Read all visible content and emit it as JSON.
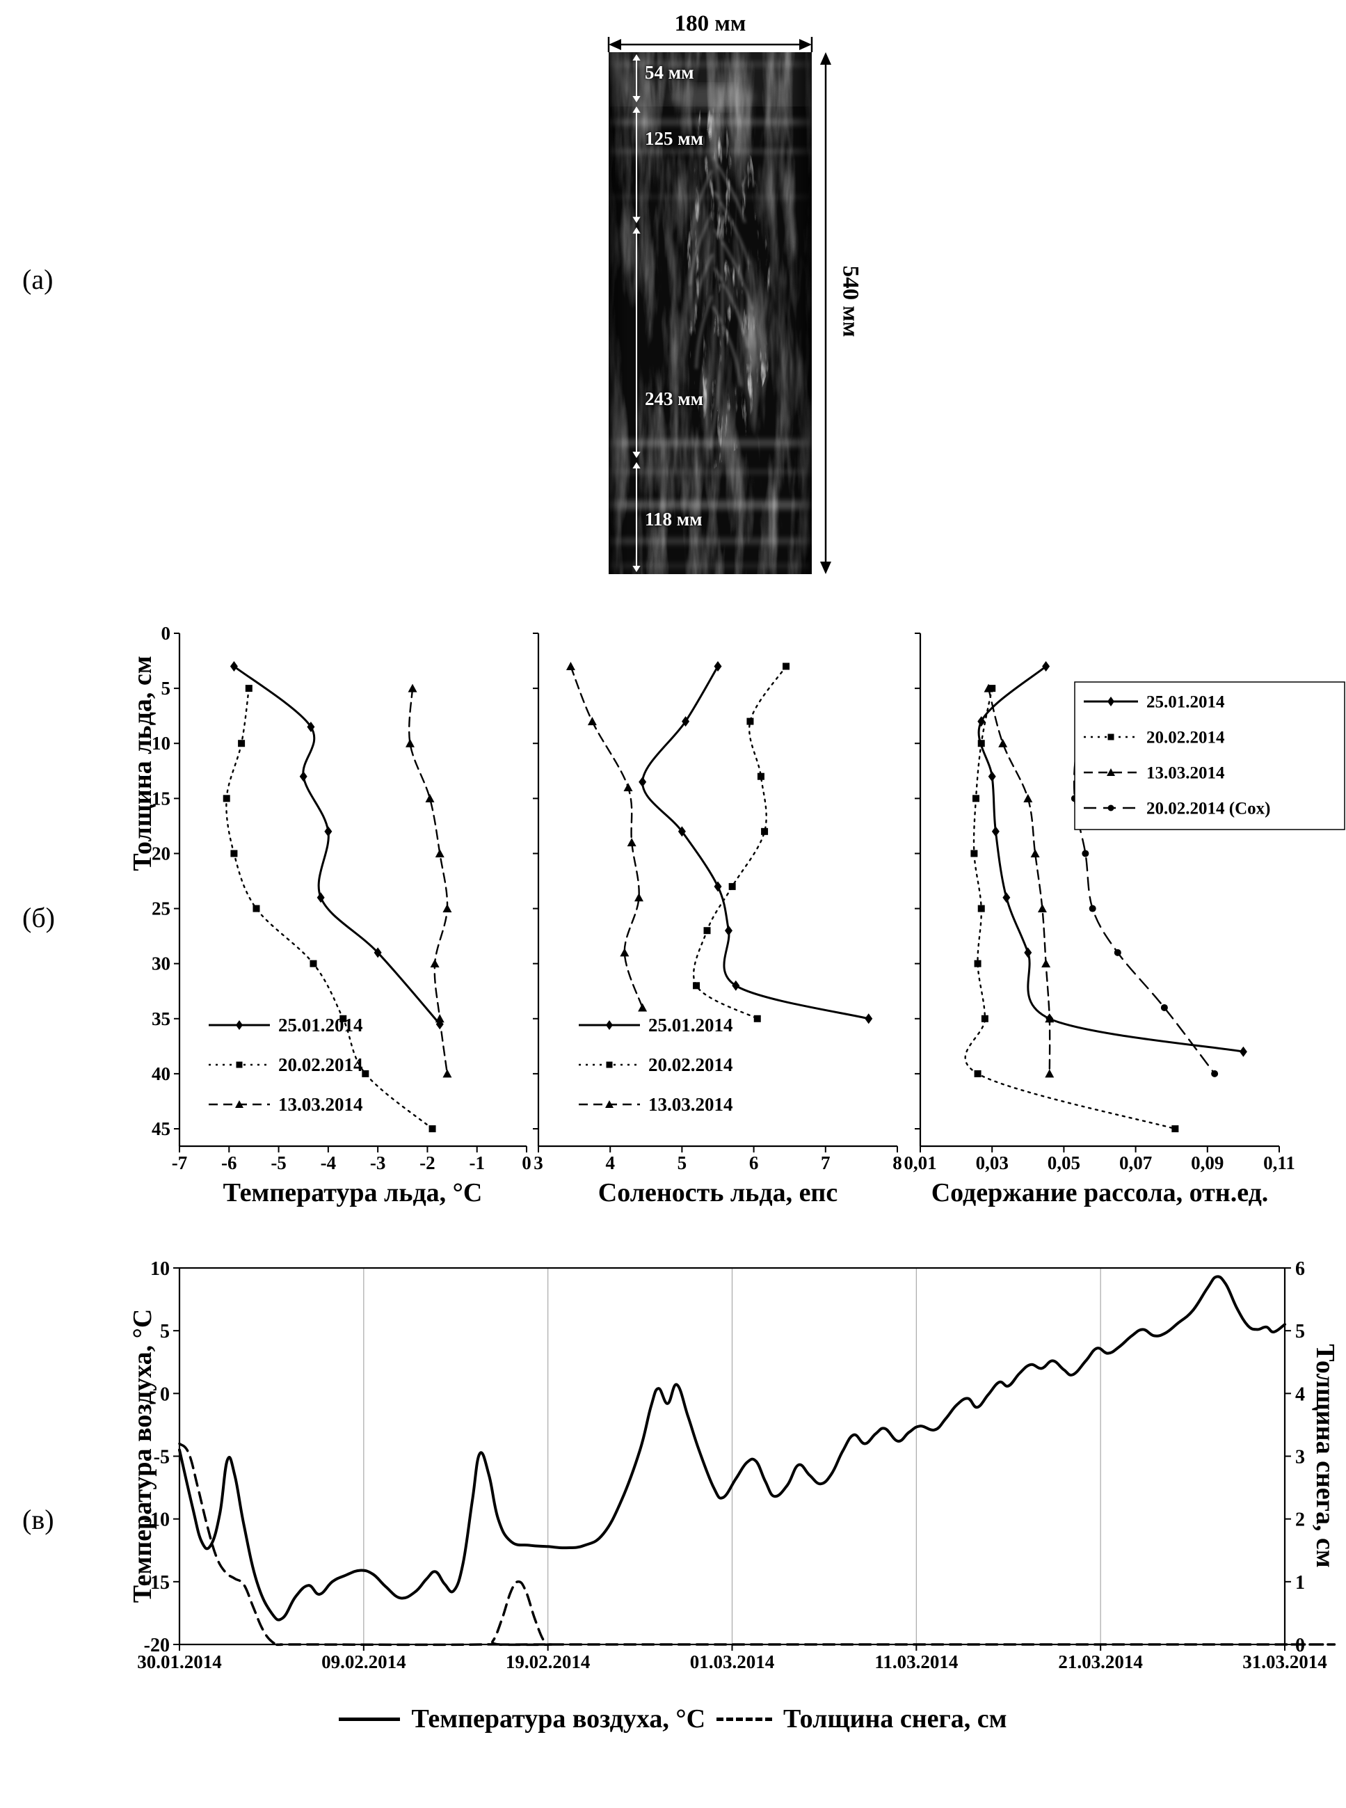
{
  "panels": {
    "a": "(а)",
    "b": "(б)",
    "v": "(в)"
  },
  "core_image": {
    "width_label": "180 мм",
    "height_label": "540 мм",
    "total_mm": 540,
    "segments": [
      {
        "label": "54 мм",
        "mm": 54
      },
      {
        "label": "125 мм",
        "mm": 125
      },
      {
        "label": "243 мм",
        "mm": 243
      },
      {
        "label": "118 мм",
        "mm": 118
      }
    ]
  },
  "profiles_ylabel": "Толщина льда, см",
  "chart_data": [
    {
      "id": "ice-temperature-profile",
      "type": "line",
      "title": "Температура льда, °C",
      "ylabel": "Толщина льда, см",
      "xlim": [
        -7,
        0
      ],
      "xticks": [
        -7,
        -6,
        -5,
        -4,
        -3,
        -2,
        -1,
        0
      ],
      "xtick_labels": [
        "-7",
        "-6",
        "-5",
        "-4",
        "-3",
        "-2",
        "-1",
        "0"
      ],
      "ylim": [
        0,
        47
      ],
      "yticks": [
        0,
        5,
        10,
        15,
        20,
        25,
        30,
        35,
        40,
        45
      ],
      "ytick_labels": [
        "0",
        "5",
        "10",
        "15",
        "20",
        "25",
        "30",
        "35",
        "40",
        "45"
      ],
      "y_axis": "depth_cm_downward",
      "grid": "off",
      "legend_position": "bottom-left",
      "series": [
        {
          "name": "25.01.2014",
          "line": "solid",
          "marker": "diamond",
          "points": [
            [
              -5.9,
              3
            ],
            [
              -4.35,
              8.5
            ],
            [
              -4.5,
              13
            ],
            [
              -4.0,
              18
            ],
            [
              -4.15,
              24
            ],
            [
              -3.0,
              29
            ],
            [
              -1.75,
              35.5
            ]
          ]
        },
        {
          "name": "20.02.2014",
          "line": "dotted",
          "marker": "square",
          "points": [
            [
              -5.6,
              5
            ],
            [
              -5.75,
              10
            ],
            [
              -6.05,
              15
            ],
            [
              -5.9,
              20
            ],
            [
              -5.45,
              25
            ],
            [
              -4.3,
              30
            ],
            [
              -3.7,
              35
            ],
            [
              -3.25,
              40
            ],
            [
              -1.9,
              45
            ]
          ]
        },
        {
          "name": "13.03.2014",
          "line": "dashed",
          "marker": "triangle",
          "points": [
            [
              -2.3,
              5
            ],
            [
              -2.35,
              10
            ],
            [
              -1.95,
              15
            ],
            [
              -1.75,
              20
            ],
            [
              -1.6,
              25
            ],
            [
              -1.85,
              30
            ],
            [
              -1.75,
              35
            ],
            [
              -1.6,
              40
            ]
          ]
        }
      ]
    },
    {
      "id": "ice-salinity-profile",
      "type": "line",
      "title": "Соленость льда, епс",
      "xlim": [
        3,
        8
      ],
      "xticks": [
        3,
        4,
        5,
        6,
        7,
        8
      ],
      "xtick_labels": [
        "3",
        "4",
        "5",
        "6",
        "7",
        "8"
      ],
      "ylim": [
        0,
        47
      ],
      "yticks": [
        0,
        5,
        10,
        15,
        20,
        25,
        30,
        35,
        40,
        45
      ],
      "y_axis": "depth_cm_downward",
      "grid": "off",
      "legend_position": "bottom-left",
      "series": [
        {
          "name": "25.01.2014",
          "line": "solid",
          "marker": "diamond",
          "points": [
            [
              5.5,
              3
            ],
            [
              5.05,
              8
            ],
            [
              4.45,
              13.5
            ],
            [
              5.0,
              18
            ],
            [
              5.5,
              23
            ],
            [
              5.65,
              27
            ],
            [
              5.75,
              32
            ],
            [
              7.6,
              35
            ]
          ]
        },
        {
          "name": "20.02.2014",
          "line": "dotted",
          "marker": "square",
          "points": [
            [
              6.45,
              3
            ],
            [
              5.95,
              8
            ],
            [
              6.1,
              13
            ],
            [
              6.15,
              18
            ],
            [
              5.7,
              23
            ],
            [
              5.35,
              27
            ],
            [
              5.2,
              32
            ],
            [
              6.05,
              35
            ]
          ]
        },
        {
          "name": "13.03.2014",
          "line": "dashed",
          "marker": "triangle",
          "points": [
            [
              3.45,
              3
            ],
            [
              3.75,
              8
            ],
            [
              4.25,
              14
            ],
            [
              4.3,
              19
            ],
            [
              4.4,
              24
            ],
            [
              4.2,
              29
            ],
            [
              4.45,
              34
            ]
          ]
        }
      ]
    },
    {
      "id": "brine-content-profile",
      "type": "line",
      "title": "Содержание рассола, отн.ед.",
      "xlim": [
        0.01,
        0.11
      ],
      "xticks": [
        0.01,
        0.03,
        0.05,
        0.07,
        0.09,
        0.11
      ],
      "xtick_labels": [
        "0,01",
        "0,03",
        "0,05",
        "0,07",
        "0,09",
        "0,11"
      ],
      "ylim": [
        0,
        47
      ],
      "yticks": [
        0,
        5,
        10,
        15,
        20,
        25,
        30,
        35,
        40,
        45
      ],
      "y_axis": "depth_cm_downward",
      "grid": "off",
      "legend_position": "top-right",
      "series": [
        {
          "name": "25.01.2014",
          "line": "solid",
          "marker": "diamond",
          "points": [
            [
              0.045,
              3
            ],
            [
              0.027,
              8
            ],
            [
              0.03,
              13
            ],
            [
              0.031,
              18
            ],
            [
              0.034,
              24
            ],
            [
              0.04,
              29
            ],
            [
              0.046,
              35
            ],
            [
              0.1,
              38
            ]
          ]
        },
        {
          "name": "20.02.2014",
          "line": "dotted",
          "marker": "square",
          "points": [
            [
              0.03,
              5
            ],
            [
              0.027,
              10
            ],
            [
              0.0255,
              15
            ],
            [
              0.025,
              20
            ],
            [
              0.027,
              25
            ],
            [
              0.026,
              30
            ],
            [
              0.028,
              35
            ],
            [
              0.026,
              40
            ],
            [
              0.081,
              45
            ]
          ]
        },
        {
          "name": "13.03.2014",
          "line": "dashed",
          "marker": "triangle",
          "points": [
            [
              0.029,
              5
            ],
            [
              0.033,
              10
            ],
            [
              0.04,
              15
            ],
            [
              0.042,
              20
            ],
            [
              0.044,
              25
            ],
            [
              0.045,
              30
            ],
            [
              0.046,
              35
            ],
            [
              0.046,
              40
            ]
          ]
        },
        {
          "name": "20.02.2014 (Cox)",
          "line": "longdash",
          "marker": "circle",
          "points": [
            [
              0.06,
              5
            ],
            [
              0.054,
              10
            ],
            [
              0.053,
              15
            ],
            [
              0.056,
              20
            ],
            [
              0.058,
              25
            ],
            [
              0.065,
              29
            ],
            [
              0.078,
              34
            ],
            [
              0.092,
              40
            ]
          ]
        }
      ]
    },
    {
      "id": "air-temp-snow-timeseries",
      "type": "line",
      "xlim": [
        0,
        60
      ],
      "xticks": [
        0,
        10,
        20,
        30,
        40,
        50,
        60
      ],
      "xtick_labels": [
        "30.01.2014",
        "09.02.2014",
        "19.02.2014",
        "01.03.2014",
        "11.03.2014",
        "21.03.2014",
        "31.03.2014"
      ],
      "ylabel_left": "Температура воздуха, °C",
      "ylabel_right": "Толщина снега, см",
      "ylim_left": [
        -20,
        10
      ],
      "yticks_left": [
        -20,
        -15,
        -10,
        -5,
        0,
        5,
        10
      ],
      "ytick_labels_left": [
        "-20",
        "-15",
        "-10",
        "-5",
        "0",
        "5",
        "10"
      ],
      "ylim_right": [
        0,
        6
      ],
      "yticks_right": [
        0,
        1,
        2,
        3,
        4,
        5,
        6
      ],
      "ytick_labels_right": [
        "0",
        "1",
        "2",
        "3",
        "4",
        "5",
        "6"
      ],
      "grid": "vertical",
      "legend_position": "bottom",
      "series": [
        {
          "name": "Температура воздуха, °C",
          "axis": "left",
          "line": "solid",
          "points": [
            [
              0,
              -4.5
            ],
            [
              0.7,
              -9
            ],
            [
              1.2,
              -11.8
            ],
            [
              1.7,
              -12.1
            ],
            [
              2.2,
              -9.5
            ],
            [
              2.6,
              -5.3
            ],
            [
              3,
              -6.5
            ],
            [
              3.5,
              -10.5
            ],
            [
              4.2,
              -15
            ],
            [
              5,
              -17.5
            ],
            [
              5.6,
              -17.9
            ],
            [
              6.3,
              -16.2
            ],
            [
              7,
              -15.3
            ],
            [
              7.6,
              -16
            ],
            [
              8.3,
              -15
            ],
            [
              9,
              -14.5
            ],
            [
              9.8,
              -14.1
            ],
            [
              10.5,
              -14.4
            ],
            [
              11.2,
              -15.4
            ],
            [
              12,
              -16.3
            ],
            [
              12.8,
              -15.8
            ],
            [
              13.4,
              -14.8
            ],
            [
              13.9,
              -14.2
            ],
            [
              14.4,
              -15.2
            ],
            [
              14.9,
              -15.7
            ],
            [
              15.4,
              -13.5
            ],
            [
              15.9,
              -8.5
            ],
            [
              16.3,
              -4.8
            ],
            [
              16.8,
              -6.5
            ],
            [
              17.3,
              -10
            ],
            [
              18,
              -11.8
            ],
            [
              19,
              -12.1
            ],
            [
              20,
              -12.2
            ],
            [
              21,
              -12.3
            ],
            [
              22,
              -12.1
            ],
            [
              23,
              -11.2
            ],
            [
              24,
              -8.5
            ],
            [
              25,
              -4.5
            ],
            [
              25.6,
              -1
            ],
            [
              26,
              0.4
            ],
            [
              26.5,
              -0.8
            ],
            [
              27,
              0.7
            ],
            [
              27.6,
              -1.8
            ],
            [
              28.2,
              -4.5
            ],
            [
              29,
              -7.5
            ],
            [
              29.5,
              -8.3
            ],
            [
              30.2,
              -6.8
            ],
            [
              30.8,
              -5.5
            ],
            [
              31.3,
              -5.4
            ],
            [
              31.8,
              -7
            ],
            [
              32.3,
              -8.2
            ],
            [
              33,
              -7.3
            ],
            [
              33.6,
              -5.7
            ],
            [
              34.2,
              -6.5
            ],
            [
              34.8,
              -7.2
            ],
            [
              35.4,
              -6.4
            ],
            [
              36,
              -4.6
            ],
            [
              36.6,
              -3.3
            ],
            [
              37.2,
              -4
            ],
            [
              37.8,
              -3.2
            ],
            [
              38.3,
              -2.8
            ],
            [
              39,
              -3.8
            ],
            [
              39.6,
              -3.1
            ],
            [
              40.2,
              -2.6
            ],
            [
              41,
              -2.9
            ],
            [
              41.6,
              -2
            ],
            [
              42.2,
              -0.9
            ],
            [
              42.8,
              -0.4
            ],
            [
              43.3,
              -1.1
            ],
            [
              43.9,
              -0.1
            ],
            [
              44.5,
              0.9
            ],
            [
              45,
              0.6
            ],
            [
              45.6,
              1.6
            ],
            [
              46.2,
              2.3
            ],
            [
              46.8,
              2
            ],
            [
              47.4,
              2.6
            ],
            [
              48,
              1.9
            ],
            [
              48.5,
              1.5
            ],
            [
              49.2,
              2.6
            ],
            [
              49.8,
              3.6
            ],
            [
              50.4,
              3.2
            ],
            [
              51,
              3.7
            ],
            [
              51.7,
              4.6
            ],
            [
              52.3,
              5.1
            ],
            [
              52.9,
              4.6
            ],
            [
              53.5,
              4.8
            ],
            [
              54.2,
              5.6
            ],
            [
              55,
              6.6
            ],
            [
              55.8,
              8.4
            ],
            [
              56.3,
              9.3
            ],
            [
              56.8,
              8.7
            ],
            [
              57.4,
              6.8
            ],
            [
              58,
              5.4
            ],
            [
              58.5,
              5.1
            ],
            [
              59,
              5.3
            ],
            [
              59.4,
              4.9
            ],
            [
              60,
              5.5
            ]
          ]
        },
        {
          "name": "Толщина снега, см",
          "axis": "right",
          "line": "dashed",
          "points": [
            [
              0,
              3.2
            ],
            [
              0.5,
              3.05
            ],
            [
              1,
              2.5
            ],
            [
              1.5,
              1.9
            ],
            [
              2,
              1.4
            ],
            [
              2.5,
              1.15
            ],
            [
              3,
              1.05
            ],
            [
              3.5,
              0.95
            ],
            [
              4,
              0.6
            ],
            [
              4.5,
              0.25
            ],
            [
              5,
              0.05
            ],
            [
              5.5,
              0
            ],
            [
              6.5,
              0
            ],
            [
              16.5,
              0
            ],
            [
              17,
              0.05
            ],
            [
              17.5,
              0.4
            ],
            [
              18,
              0.85
            ],
            [
              18.4,
              1.0
            ],
            [
              18.8,
              0.85
            ],
            [
              19.3,
              0.4
            ],
            [
              19.8,
              0.05
            ],
            [
              20.2,
              0
            ],
            [
              21,
              0
            ],
            [
              59,
              0
            ],
            [
              60,
              0
            ]
          ]
        }
      ]
    }
  ]
}
